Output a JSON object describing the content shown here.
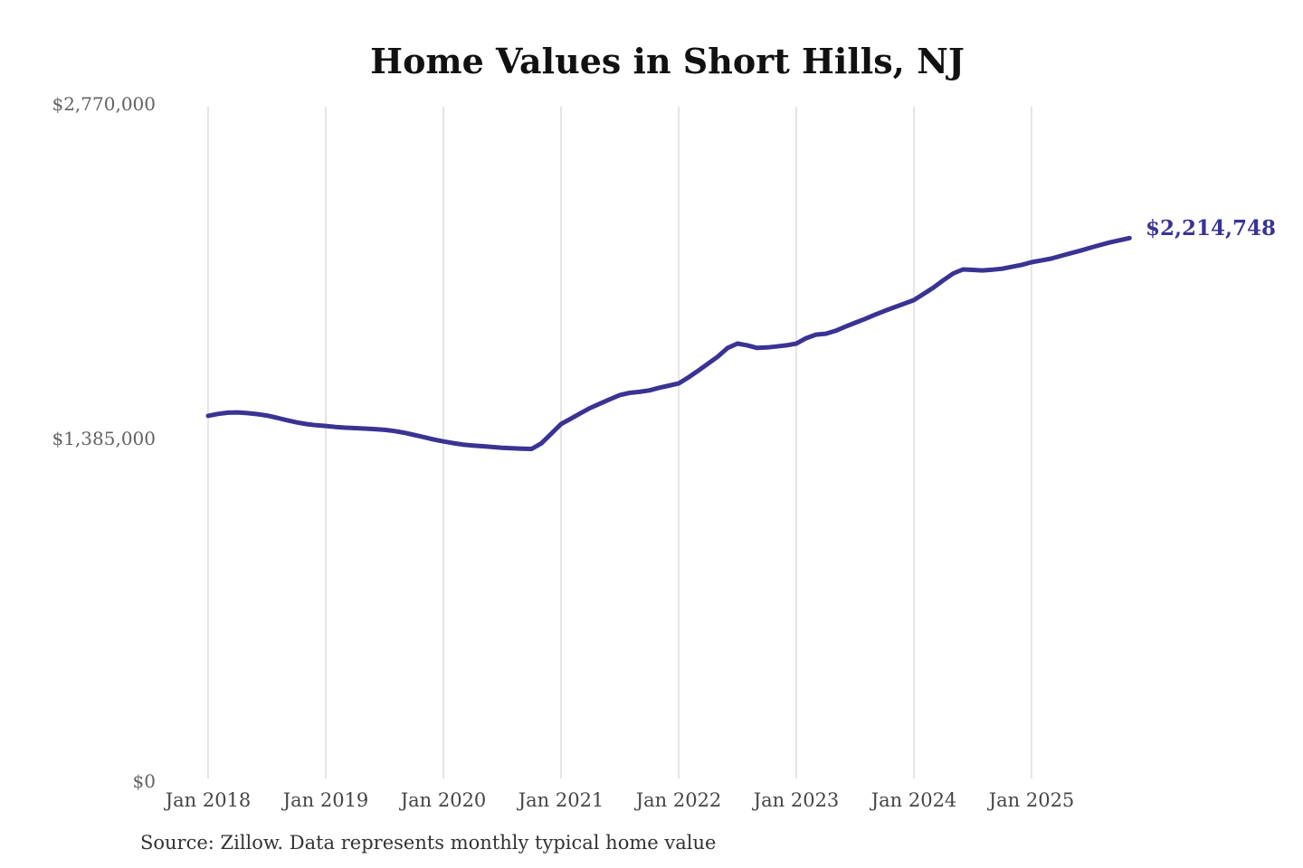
{
  "chart": {
    "title": "Home Values in Short Hills, NJ",
    "end_label": "$2,214,748",
    "source_note": "Source: Zillow. Data represents monthly typical home value"
  },
  "chart_data": {
    "type": "line",
    "title": "Home Values in Short Hills, NJ",
    "xlabel": "",
    "ylabel": "",
    "ylim": [
      0,
      2770000
    ],
    "grid": "vertical-only",
    "legend": "none",
    "x_ticks": [
      "Jan 2018",
      "Jan 2019",
      "Jan 2020",
      "Jan 2021",
      "Jan 2022",
      "Jan 2023",
      "Jan 2024",
      "Jan 2025"
    ],
    "y_ticks": [
      {
        "label": "$0",
        "value": 0,
        "dy": 9
      },
      {
        "label": "$1,385,000",
        "value": 1385000,
        "dy": 0
      },
      {
        "label": "$2,770,000",
        "value": 2770000,
        "dy": 0
      }
    ],
    "annotation": {
      "text": "$2,214,748",
      "value": 2214748
    },
    "series": [
      {
        "name": "Monthly typical home value",
        "start_month": "2018-01",
        "end_month": "2025-11",
        "values": [
          1479000,
          1487000,
          1492000,
          1493000,
          1490000,
          1486000,
          1480000,
          1471000,
          1461000,
          1452000,
          1445000,
          1440000,
          1437000,
          1433000,
          1430000,
          1428000,
          1426000,
          1424000,
          1421000,
          1416000,
          1409000,
          1400000,
          1391000,
          1381000,
          1373000,
          1366000,
          1360000,
          1356000,
          1353000,
          1350000,
          1347000,
          1345000,
          1343000,
          1342000,
          1365000,
          1405000,
          1445000,
          1467000,
          1490000,
          1512000,
          1530000,
          1548000,
          1565000,
          1574000,
          1578000,
          1584000,
          1595000,
          1604000,
          1613000,
          1638000,
          1666000,
          1695000,
          1724000,
          1760000,
          1778000,
          1771000,
          1760000,
          1762000,
          1766000,
          1771000,
          1778000,
          1800000,
          1815000,
          1819000,
          1831000,
          1848000,
          1864000,
          1880000,
          1897000,
          1913000,
          1928000,
          1943000,
          1958000,
          1984000,
          2010000,
          2040000,
          2068000,
          2085000,
          2083000,
          2081000,
          2084000,
          2088000,
          2096000,
          2104000,
          2115000,
          2122000,
          2130000,
          2141000,
          2152000,
          2163000,
          2175000,
          2186000,
          2197000,
          2206000,
          2214748
        ]
      }
    ],
    "colors": {
      "line": "#3a3393",
      "annotation": "#3a3393",
      "grid": "#cbcbcb",
      "x_axis_text": "#454545",
      "y_axis_text": "#636363",
      "title": "#111111",
      "source_text": "#333333",
      "background": "#ffffff"
    }
  }
}
